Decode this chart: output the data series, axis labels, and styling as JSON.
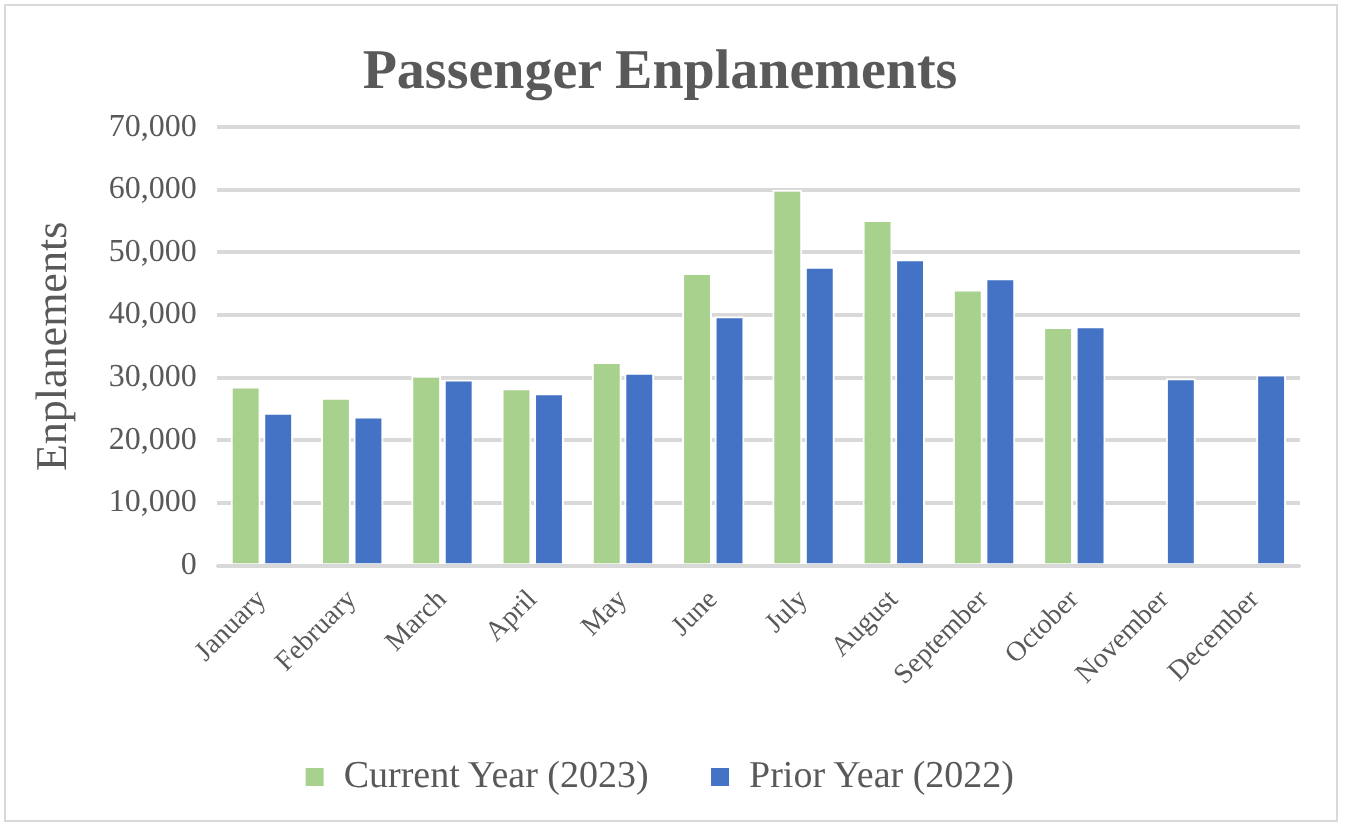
{
  "chart_data": {
    "type": "bar",
    "title": "Passenger Enplanements",
    "ylabel": "Enplanements",
    "categories": [
      "January",
      "February",
      "March",
      "April",
      "May",
      "June",
      "July",
      "August",
      "September",
      "October",
      "November",
      "December"
    ],
    "series": [
      {
        "name": "Current Year (2023)",
        "color": "#a9d18e",
        "values": [
          28600,
          26800,
          30300,
          28300,
          32500,
          46700,
          60000,
          55200,
          44100,
          38100,
          null,
          null
        ]
      },
      {
        "name": "Prior Year (2022)",
        "color": "#4472c4",
        "values": [
          24400,
          23800,
          29700,
          27500,
          30800,
          39800,
          47700,
          48900,
          45900,
          38200,
          29900,
          30500
        ]
      }
    ],
    "ylim": [
      0,
      70000
    ],
    "yticks": [
      0,
      {
        "value": 10000,
        "label": "10,000"
      },
      {
        "value": 20000,
        "label": "20,000"
      },
      {
        "value": 30000,
        "label": "30,000"
      },
      {
        "value": 40000,
        "label": "40,000"
      },
      {
        "value": 50000,
        "label": "50,000"
      },
      {
        "value": 60000,
        "label": "60,000"
      },
      {
        "value": 70000,
        "label": "70,000"
      }
    ],
    "grid": "y",
    "legend": "bottom"
  }
}
